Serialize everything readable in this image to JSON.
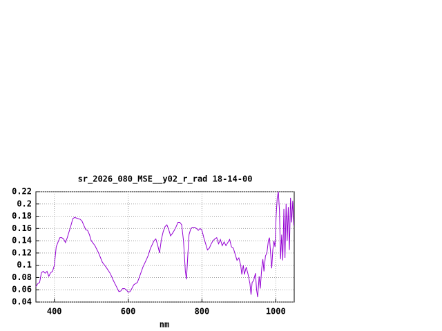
{
  "chart_data": {
    "type": "line",
    "title": "sr_2026_080_MSE__y02_r_rad 18-14-00",
    "x_label": "nm",
    "x": [
      350,
      355,
      360,
      365,
      370,
      375,
      380,
      385,
      390,
      395,
      400,
      405,
      410,
      415,
      420,
      425,
      430,
      435,
      440,
      445,
      450,
      455,
      460,
      470,
      475,
      480,
      485,
      490,
      495,
      500,
      510,
      520,
      530,
      540,
      550,
      555,
      560,
      570,
      575,
      580,
      585,
      590,
      595,
      600,
      605,
      610,
      615,
      620,
      625,
      630,
      640,
      650,
      655,
      660,
      670,
      675,
      680,
      685,
      690,
      695,
      700,
      705,
      710,
      715,
      720,
      725,
      730,
      735,
      740,
      745,
      750,
      755,
      758,
      762,
      765,
      770,
      775,
      780,
      785,
      790,
      795,
      800,
      805,
      810,
      815,
      820,
      825,
      830,
      835,
      840,
      845,
      850,
      855,
      860,
      865,
      870,
      875,
      880,
      885,
      890,
      895,
      900,
      905,
      908,
      912,
      915,
      920,
      925,
      930,
      933,
      936,
      940,
      945,
      948,
      951,
      955,
      958,
      962,
      965,
      968,
      972,
      976,
      980,
      983,
      986,
      989,
      992,
      995,
      998,
      1001,
      1004,
      1007,
      1010,
      1013,
      1016,
      1019,
      1022,
      1025,
      1028,
      1031,
      1034,
      1037,
      1040,
      1043,
      1046,
      1049
    ],
    "series": [
      {
        "color": "#9400d3",
        "values": [
          0.065,
          0.07,
          0.072,
          0.088,
          0.09,
          0.087,
          0.09,
          0.082,
          0.088,
          0.09,
          0.1,
          0.13,
          0.138,
          0.145,
          0.145,
          0.143,
          0.137,
          0.145,
          0.155,
          0.165,
          0.176,
          0.178,
          0.177,
          0.175,
          0.172,
          0.165,
          0.158,
          0.157,
          0.15,
          0.14,
          0.132,
          0.12,
          0.105,
          0.097,
          0.088,
          0.082,
          0.075,
          0.063,
          0.057,
          0.058,
          0.062,
          0.062,
          0.06,
          0.056,
          0.057,
          0.062,
          0.068,
          0.07,
          0.072,
          0.08,
          0.097,
          0.11,
          0.117,
          0.127,
          0.14,
          0.143,
          0.133,
          0.12,
          0.142,
          0.155,
          0.163,
          0.166,
          0.158,
          0.148,
          0.152,
          0.157,
          0.163,
          0.17,
          0.17,
          0.166,
          0.14,
          0.09,
          0.077,
          0.12,
          0.15,
          0.16,
          0.162,
          0.162,
          0.16,
          0.157,
          0.16,
          0.157,
          0.145,
          0.135,
          0.125,
          0.128,
          0.135,
          0.14,
          0.143,
          0.145,
          0.135,
          0.142,
          0.132,
          0.138,
          0.132,
          0.137,
          0.142,
          0.13,
          0.128,
          0.118,
          0.108,
          0.112,
          0.1,
          0.085,
          0.1,
          0.085,
          0.097,
          0.085,
          0.07,
          0.052,
          0.072,
          0.075,
          0.087,
          0.06,
          0.048,
          0.082,
          0.062,
          0.095,
          0.11,
          0.09,
          0.115,
          0.12,
          0.14,
          0.145,
          0.12,
          0.095,
          0.125,
          0.14,
          0.13,
          0.18,
          0.21,
          0.22,
          0.19,
          0.11,
          0.15,
          0.108,
          0.192,
          0.112,
          0.2,
          0.14,
          0.195,
          0.125,
          0.21,
          0.17,
          0.205,
          0.165
        ]
      }
    ],
    "xlim": [
      350,
      1050
    ],
    "xticks": [
      400,
      600,
      800,
      1000
    ],
    "ylim": [
      0.04,
      0.22
    ],
    "yticks": [
      0.04,
      0.06,
      0.08,
      0.1,
      0.12,
      0.14,
      0.16,
      0.18,
      0.2,
      0.22
    ],
    "grid": true
  }
}
